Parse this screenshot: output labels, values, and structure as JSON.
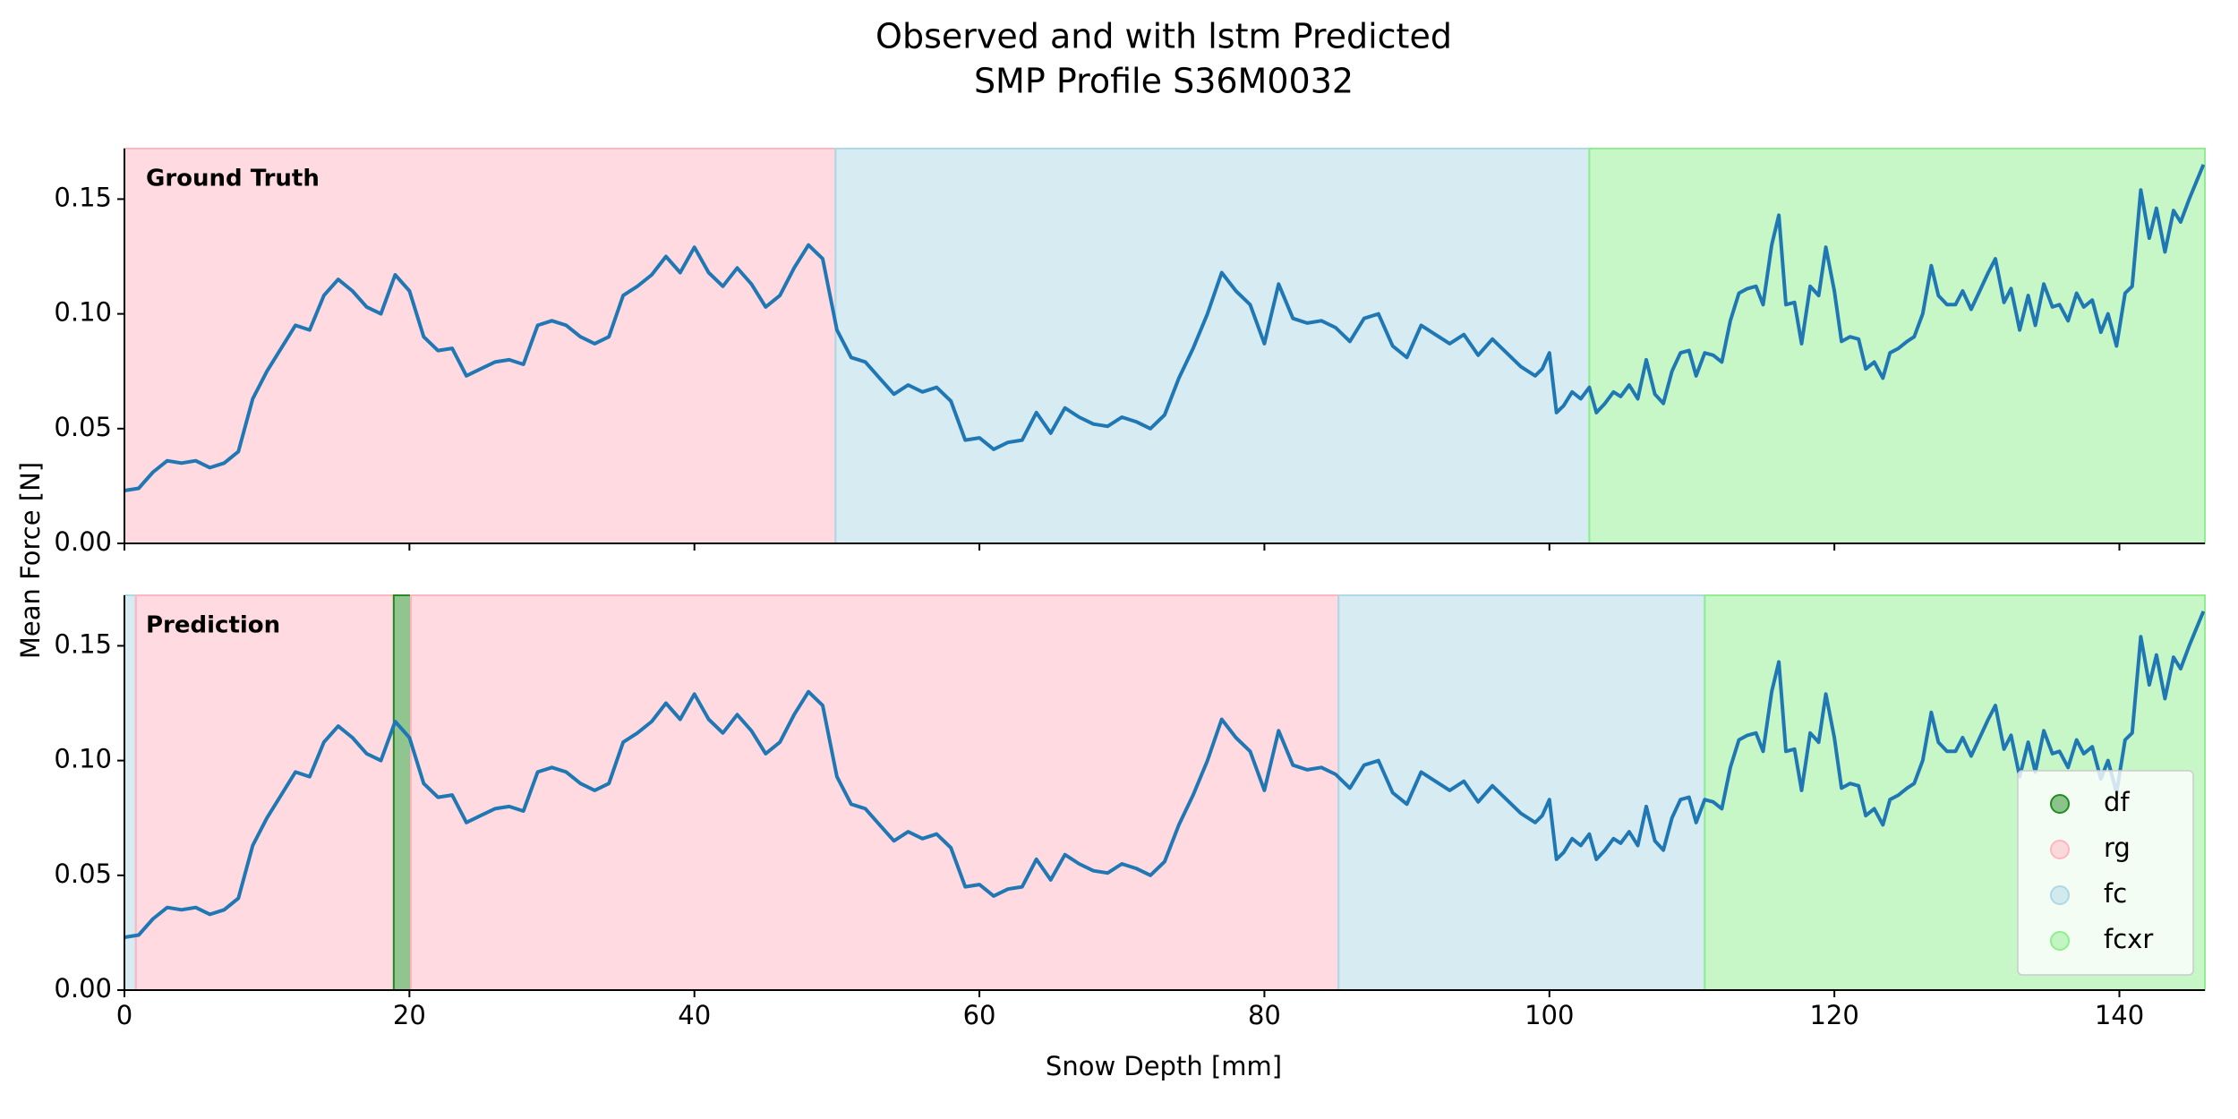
{
  "figure": {
    "title": [
      "Observed and with lstm Predicted",
      "SMP Profile S36M0032"
    ],
    "xlabel": "Snow Depth [mm]",
    "ylabel": "Mean Force [N]"
  },
  "chart_data": [
    {
      "type": "line",
      "panel_label": "Ground Truth",
      "x": [
        0,
        1,
        2,
        3,
        4,
        5,
        6,
        7,
        8,
        9,
        10,
        11,
        12,
        13,
        14,
        15,
        16,
        17,
        18,
        19,
        20,
        21,
        22,
        23,
        24,
        25,
        26,
        27,
        28,
        29,
        30,
        31,
        32,
        33,
        34,
        35,
        36,
        37,
        38,
        39,
        40,
        41,
        42,
        43,
        44,
        45,
        46,
        47,
        48,
        49,
        50,
        51,
        52,
        53,
        54,
        55,
        56,
        57,
        58,
        59,
        60,
        61,
        62,
        63,
        64,
        65,
        66,
        67,
        68,
        69,
        70,
        71,
        72,
        73,
        74,
        75,
        76,
        77,
        78,
        79,
        80,
        81,
        82,
        83,
        84,
        85,
        86,
        87,
        88,
        89,
        90,
        91,
        92,
        93,
        94,
        95,
        96,
        97,
        98,
        99,
        99.5,
        100,
        100.5,
        101,
        101.6,
        102.2,
        102.8,
        103.3,
        103.9,
        104.5,
        105,
        105.6,
        106.2,
        106.8,
        107.4,
        108,
        108.6,
        109.2,
        109.8,
        110.3,
        110.9,
        111.5,
        112.1,
        112.7,
        113.3,
        113.9,
        114.5,
        115,
        115.6,
        116.1,
        116.6,
        117.2,
        117.7,
        118.3,
        118.9,
        119.4,
        120,
        120.5,
        121.1,
        121.7,
        122.2,
        122.8,
        123.4,
        123.9,
        124.5,
        125.1,
        125.6,
        126.2,
        126.8,
        127.3,
        127.9,
        128.5,
        129,
        129.6,
        130.2,
        130.8,
        131.3,
        131.9,
        132.4,
        133,
        133.6,
        134.1,
        134.7,
        135.3,
        135.8,
        136.4,
        137,
        137.5,
        138.1,
        138.7,
        139.2,
        139.8,
        140.4,
        140.9,
        141.5,
        142.1,
        142.6,
        143.2,
        143.8,
        144.3,
        144.9,
        145.9
      ],
      "series": [
        {
          "color": "#1f77b4",
          "values": [
            0.023,
            0.024,
            0.031,
            0.036,
            0.035,
            0.036,
            0.033,
            0.035,
            0.04,
            0.063,
            0.075,
            0.085,
            0.095,
            0.093,
            0.108,
            0.115,
            0.11,
            0.103,
            0.1,
            0.117,
            0.11,
            0.09,
            0.084,
            0.085,
            0.073,
            0.076,
            0.079,
            0.08,
            0.078,
            0.095,
            0.097,
            0.095,
            0.09,
            0.087,
            0.09,
            0.108,
            0.112,
            0.117,
            0.125,
            0.118,
            0.129,
            0.118,
            0.112,
            0.12,
            0.113,
            0.103,
            0.108,
            0.12,
            0.13,
            0.124,
            0.093,
            0.081,
            0.079,
            0.072,
            0.065,
            0.069,
            0.066,
            0.068,
            0.062,
            0.045,
            0.046,
            0.041,
            0.044,
            0.045,
            0.057,
            0.048,
            0.059,
            0.055,
            0.052,
            0.051,
            0.055,
            0.053,
            0.05,
            0.056,
            0.072,
            0.085,
            0.1,
            0.118,
            0.11,
            0.104,
            0.087,
            0.113,
            0.098,
            0.096,
            0.097,
            0.094,
            0.088,
            0.098,
            0.1,
            0.086,
            0.081,
            0.095,
            0.091,
            0.087,
            0.091,
            0.082,
            0.089,
            0.083,
            0.077,
            0.073,
            0.076,
            0.083,
            0.057,
            0.06,
            0.066,
            0.063,
            0.068,
            0.057,
            0.061,
            0.066,
            0.064,
            0.069,
            0.063,
            0.08,
            0.065,
            0.061,
            0.075,
            0.083,
            0.084,
            0.073,
            0.083,
            0.082,
            0.079,
            0.097,
            0.109,
            0.111,
            0.112,
            0.104,
            0.13,
            0.143,
            0.104,
            0.105,
            0.087,
            0.112,
            0.108,
            0.129,
            0.11,
            0.088,
            0.09,
            0.089,
            0.076,
            0.079,
            0.072,
            0.083,
            0.085,
            0.088,
            0.09,
            0.1,
            0.121,
            0.108,
            0.104,
            0.104,
            0.11,
            0.102,
            0.11,
            0.118,
            0.124,
            0.105,
            0.111,
            0.093,
            0.108,
            0.095,
            0.113,
            0.103,
            0.104,
            0.097,
            0.109,
            0.103,
            0.106,
            0.092,
            0.1,
            0.086,
            0.109,
            0.112,
            0.154,
            0.133,
            0.146,
            0.127,
            0.145,
            0.14,
            0.15,
            0.165
          ]
        }
      ],
      "bands": [
        {
          "start": 0,
          "end": 49.9,
          "color": "#ffb6c1"
        },
        {
          "start": 49.9,
          "end": 102.8,
          "color": "#add8e6"
        },
        {
          "start": 102.8,
          "end": 146,
          "color": "#90ee90"
        }
      ],
      "xlim": [
        0,
        146
      ],
      "ylim": [
        0,
        0.172
      ],
      "xticks": [
        0,
        20,
        40,
        60,
        80,
        100,
        120,
        140
      ],
      "yticks": [
        {
          "value": 0,
          "label": "0.00"
        },
        {
          "value": 0.05,
          "label": "0.05"
        },
        {
          "value": 0.1,
          "label": "0.10"
        },
        {
          "value": 0.15,
          "label": "0.15"
        }
      ],
      "xtick_labels": false
    },
    {
      "type": "line",
      "panel_label": "Prediction",
      "x": [
        0,
        1,
        2,
        3,
        4,
        5,
        6,
        7,
        8,
        9,
        10,
        11,
        12,
        13,
        14,
        15,
        16,
        17,
        18,
        19,
        20,
        21,
        22,
        23,
        24,
        25,
        26,
        27,
        28,
        29,
        30,
        31,
        32,
        33,
        34,
        35,
        36,
        37,
        38,
        39,
        40,
        41,
        42,
        43,
        44,
        45,
        46,
        47,
        48,
        49,
        50,
        51,
        52,
        53,
        54,
        55,
        56,
        57,
        58,
        59,
        60,
        61,
        62,
        63,
        64,
        65,
        66,
        67,
        68,
        69,
        70,
        71,
        72,
        73,
        74,
        75,
        76,
        77,
        78,
        79,
        80,
        81,
        82,
        83,
        84,
        85,
        86,
        87,
        88,
        89,
        90,
        91,
        92,
        93,
        94,
        95,
        96,
        97,
        98,
        99,
        99.5,
        100,
        100.5,
        101,
        101.6,
        102.2,
        102.8,
        103.3,
        103.9,
        104.5,
        105,
        105.6,
        106.2,
        106.8,
        107.4,
        108,
        108.6,
        109.2,
        109.8,
        110.3,
        110.9,
        111.5,
        112.1,
        112.7,
        113.3,
        113.9,
        114.5,
        115,
        115.6,
        116.1,
        116.6,
        117.2,
        117.7,
        118.3,
        118.9,
        119.4,
        120,
        120.5,
        121.1,
        121.7,
        122.2,
        122.8,
        123.4,
        123.9,
        124.5,
        125.1,
        125.6,
        126.2,
        126.8,
        127.3,
        127.9,
        128.5,
        129,
        129.6,
        130.2,
        130.8,
        131.3,
        131.9,
        132.4,
        133,
        133.6,
        134.1,
        134.7,
        135.3,
        135.8,
        136.4,
        137,
        137.5,
        138.1,
        138.7,
        139.2,
        139.8,
        140.4,
        140.9,
        141.5,
        142.1,
        142.6,
        143.2,
        143.8,
        144.3,
        144.9,
        145.9
      ],
      "series": [
        {
          "color": "#1f77b4",
          "values": [
            0.023,
            0.024,
            0.031,
            0.036,
            0.035,
            0.036,
            0.033,
            0.035,
            0.04,
            0.063,
            0.075,
            0.085,
            0.095,
            0.093,
            0.108,
            0.115,
            0.11,
            0.103,
            0.1,
            0.117,
            0.11,
            0.09,
            0.084,
            0.085,
            0.073,
            0.076,
            0.079,
            0.08,
            0.078,
            0.095,
            0.097,
            0.095,
            0.09,
            0.087,
            0.09,
            0.108,
            0.112,
            0.117,
            0.125,
            0.118,
            0.129,
            0.118,
            0.112,
            0.12,
            0.113,
            0.103,
            0.108,
            0.12,
            0.13,
            0.124,
            0.093,
            0.081,
            0.079,
            0.072,
            0.065,
            0.069,
            0.066,
            0.068,
            0.062,
            0.045,
            0.046,
            0.041,
            0.044,
            0.045,
            0.057,
            0.048,
            0.059,
            0.055,
            0.052,
            0.051,
            0.055,
            0.053,
            0.05,
            0.056,
            0.072,
            0.085,
            0.1,
            0.118,
            0.11,
            0.104,
            0.087,
            0.113,
            0.098,
            0.096,
            0.097,
            0.094,
            0.088,
            0.098,
            0.1,
            0.086,
            0.081,
            0.095,
            0.091,
            0.087,
            0.091,
            0.082,
            0.089,
            0.083,
            0.077,
            0.073,
            0.076,
            0.083,
            0.057,
            0.06,
            0.066,
            0.063,
            0.068,
            0.057,
            0.061,
            0.066,
            0.064,
            0.069,
            0.063,
            0.08,
            0.065,
            0.061,
            0.075,
            0.083,
            0.084,
            0.073,
            0.083,
            0.082,
            0.079,
            0.097,
            0.109,
            0.111,
            0.112,
            0.104,
            0.13,
            0.143,
            0.104,
            0.105,
            0.087,
            0.112,
            0.108,
            0.129,
            0.11,
            0.088,
            0.09,
            0.089,
            0.076,
            0.079,
            0.072,
            0.083,
            0.085,
            0.088,
            0.09,
            0.1,
            0.121,
            0.108,
            0.104,
            0.104,
            0.11,
            0.102,
            0.11,
            0.118,
            0.124,
            0.105,
            0.111,
            0.093,
            0.108,
            0.095,
            0.113,
            0.103,
            0.104,
            0.097,
            0.109,
            0.103,
            0.106,
            0.092,
            0.1,
            0.086,
            0.109,
            0.112,
            0.154,
            0.133,
            0.146,
            0.127,
            0.145,
            0.14,
            0.15,
            0.165
          ]
        }
      ],
      "bands": [
        {
          "start": 0,
          "end": 0.8,
          "color": "#add8e6"
        },
        {
          "start": 0.8,
          "end": 18.9,
          "color": "#ffb6c1"
        },
        {
          "start": 18.9,
          "end": 20.1,
          "color": "#228b22"
        },
        {
          "start": 20.1,
          "end": 85.2,
          "color": "#ffb6c1"
        },
        {
          "start": 85.2,
          "end": 110.9,
          "color": "#add8e6"
        },
        {
          "start": 110.9,
          "end": 146,
          "color": "#90ee90"
        }
      ],
      "legend": {
        "loc": "lower right",
        "entries": [
          {
            "label": "df",
            "color": "#228b22"
          },
          {
            "label": "rg",
            "color": "#ffb6c1"
          },
          {
            "label": "fc",
            "color": "#add8e6"
          },
          {
            "label": "fcxr",
            "color": "#90ee90"
          }
        ]
      },
      "xlim": [
        0,
        146
      ],
      "ylim": [
        0,
        0.172
      ],
      "xticks": [
        0,
        20,
        40,
        60,
        80,
        100,
        120,
        140
      ],
      "yticks": [
        {
          "value": 0,
          "label": "0.00"
        },
        {
          "value": 0.05,
          "label": "0.05"
        },
        {
          "value": 0.1,
          "label": "0.10"
        },
        {
          "value": 0.15,
          "label": "0.15"
        }
      ],
      "xtick_labels": true
    }
  ]
}
